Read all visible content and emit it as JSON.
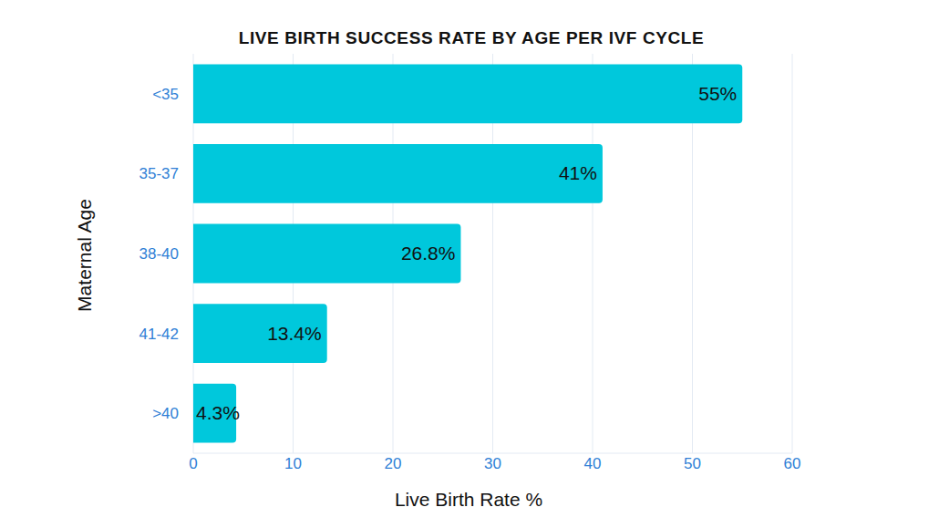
{
  "chart_data": {
    "type": "bar",
    "orientation": "horizontal",
    "title": "LIVE BIRTH SUCCESS RATE BY AGE PER IVF CYCLE",
    "x_label": "Live Birth Rate %",
    "y_label": "Maternal Age",
    "categories": [
      "<35",
      "35-37",
      "38-40",
      "41-42",
      ">40"
    ],
    "values": [
      55,
      41,
      26.8,
      13.4,
      4.3
    ],
    "value_labels": [
      "55%",
      "41%",
      "26.8%",
      "13.4%",
      "4.3%"
    ],
    "color": "#00c8dc",
    "xlim": [
      0,
      60
    ],
    "xticks": [
      0,
      10,
      20,
      30,
      40,
      50,
      60
    ],
    "grid": true,
    "data_labels": true
  }
}
